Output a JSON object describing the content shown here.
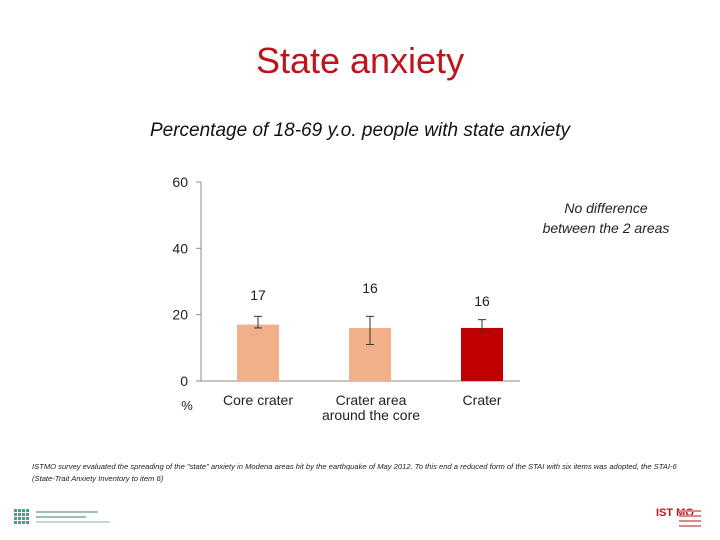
{
  "slide": {
    "title": "State anxiety",
    "annotation_line1": "No difference",
    "annotation_line2": "between the 2 areas",
    "footnote": "ISTMO survey evaluated the spreading of the \"state\" anxiety in Modena areas hit by the earthquake of May 2012. To this end a reduced form of the STAI with six items was adopted, the STAI-6 (State-Trait Anxiety Inventory to item 6)",
    "logo_right_text": "IST MO"
  },
  "chart_data": {
    "type": "bar",
    "title": "Percentage of 18-69 y.o. people with state anxiety",
    "ylabel": "%",
    "xlabel": "",
    "ylim": [
      0,
      60
    ],
    "yticks": [
      0,
      20,
      40,
      60
    ],
    "grid": false,
    "categories": [
      {
        "label_lines": [
          "Core crater"
        ]
      },
      {
        "label_lines": [
          "Crater area",
          "around the core"
        ]
      },
      {
        "label_lines": [
          "Crater"
        ]
      }
    ],
    "values": [
      17,
      16,
      16
    ],
    "error_low": [
      16,
      11,
      15
    ],
    "error_high": [
      19.5,
      19.5,
      18.5
    ],
    "colors": [
      "#f2b08a",
      "#f2b08a",
      "#c00000"
    ]
  }
}
